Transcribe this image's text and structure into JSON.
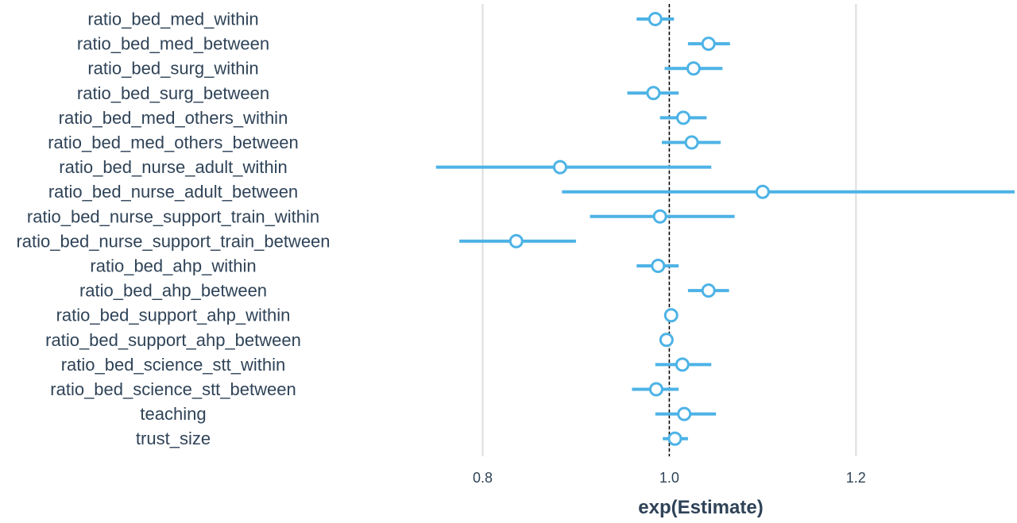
{
  "chart_data": {
    "type": "forest",
    "title": "",
    "xlabel": "exp(Estimate)",
    "ylabel": "",
    "xlim": [
      0.7,
      1.37
    ],
    "xticks": [
      0.8,
      1.0,
      1.2
    ],
    "xtick_labels": [
      "0.8",
      "1.0",
      "1.2"
    ],
    "reference_line": 1.0,
    "grid": "vertical major",
    "legend": "none",
    "colors": {
      "estimate": "#4db3e6",
      "grid": "#dddddd",
      "reference": "#000000",
      "text": "#2f4358"
    },
    "rows": [
      {
        "term": "ratio_bed_med_within",
        "estimate": 0.985,
        "lower": 0.965,
        "upper": 1.005
      },
      {
        "term": "ratio_bed_med_between",
        "estimate": 1.042,
        "lower": 1.02,
        "upper": 1.065
      },
      {
        "term": "ratio_bed_surg_within",
        "estimate": 1.026,
        "lower": 0.995,
        "upper": 1.057
      },
      {
        "term": "ratio_bed_surg_between",
        "estimate": 0.983,
        "lower": 0.955,
        "upper": 1.01
      },
      {
        "term": "ratio_bed_med_others_within",
        "estimate": 1.015,
        "lower": 0.99,
        "upper": 1.04
      },
      {
        "term": "ratio_bed_med_others_between",
        "estimate": 1.024,
        "lower": 0.992,
        "upper": 1.055
      },
      {
        "term": "ratio_bed_nurse_adult_within",
        "estimate": 0.883,
        "lower": 0.75,
        "upper": 1.045
      },
      {
        "term": "ratio_bed_nurse_adult_between",
        "estimate": 1.1,
        "lower": 0.885,
        "upper": 1.37
      },
      {
        "term": "ratio_bed_nurse_support_train_within",
        "estimate": 0.99,
        "lower": 0.915,
        "upper": 1.07
      },
      {
        "term": "ratio_bed_nurse_support_train_between",
        "estimate": 0.836,
        "lower": 0.775,
        "upper": 0.9
      },
      {
        "term": "ratio_bed_ahp_within",
        "estimate": 0.988,
        "lower": 0.965,
        "upper": 1.01
      },
      {
        "term": "ratio_bed_ahp_between",
        "estimate": 1.042,
        "lower": 1.02,
        "upper": 1.064
      },
      {
        "term": "ratio_bed_support_ahp_within",
        "estimate": 1.002,
        "lower": 0.997,
        "upper": 1.006
      },
      {
        "term": "ratio_bed_support_ahp_between",
        "estimate": 0.997,
        "lower": 0.993,
        "upper": 1.001
      },
      {
        "term": "ratio_bed_science_stt_within",
        "estimate": 1.014,
        "lower": 0.985,
        "upper": 1.045
      },
      {
        "term": "ratio_bed_science_stt_between",
        "estimate": 0.986,
        "lower": 0.96,
        "upper": 1.01
      },
      {
        "term": "teaching",
        "estimate": 1.016,
        "lower": 0.985,
        "upper": 1.05
      },
      {
        "term": "trust_size",
        "estimate": 1.006,
        "lower": 0.993,
        "upper": 1.02
      }
    ]
  }
}
